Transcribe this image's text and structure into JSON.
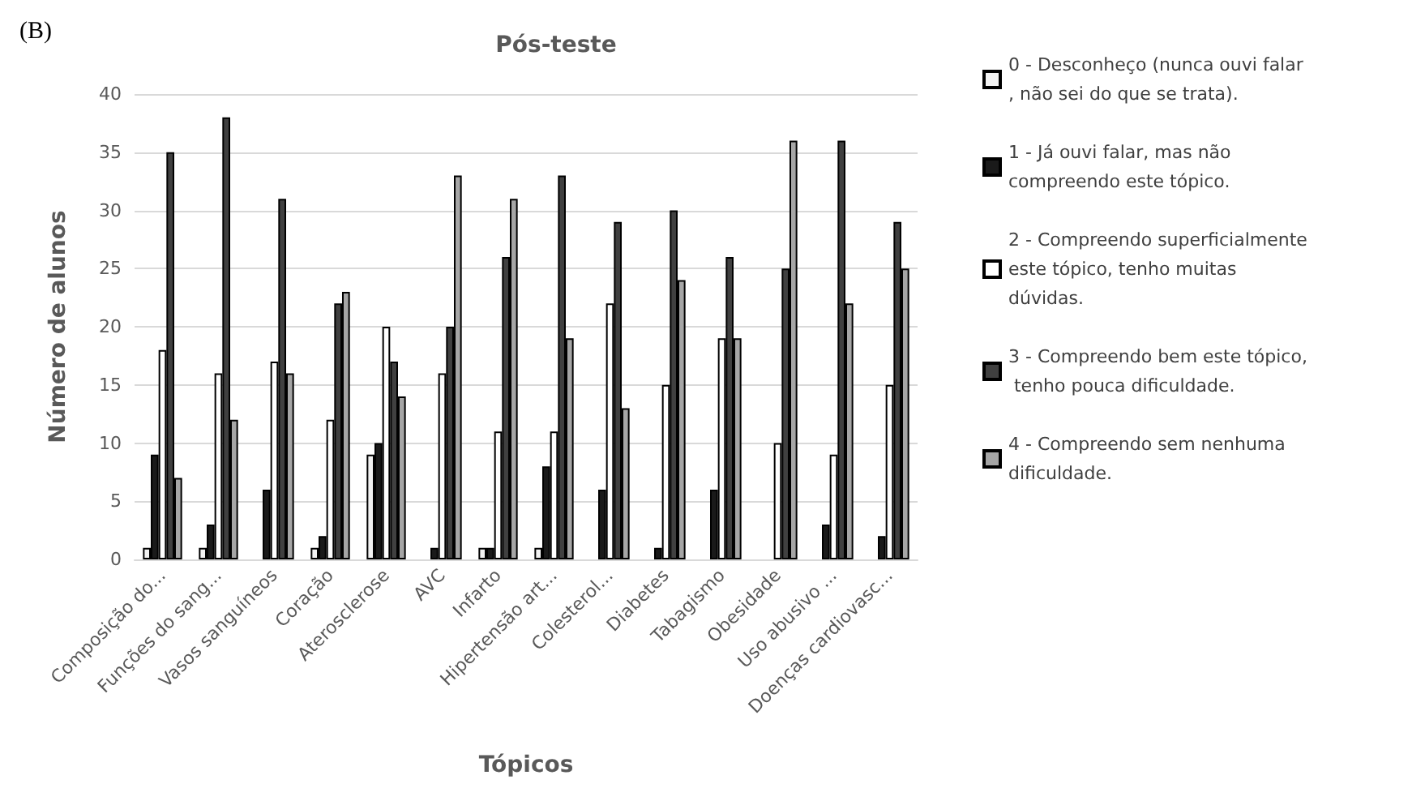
{
  "chart_data": {
    "type": "bar",
    "title": "Pós-teste",
    "xlabel": "Tópicos",
    "ylabel": "Número de alunos",
    "annotations": [
      "(B)"
    ],
    "categories": [
      "Composição do...",
      "Funções do sang...",
      "Vasos sanguíneos",
      "Coração",
      "Aterosclerose",
      "AVC",
      "Infarto",
      "Hipertensão art...",
      "Colesterol...",
      "Diabetes",
      "Tabagismo",
      "Obesidade",
      "Uso abusivo ...",
      "Doenças cardiovasc..."
    ],
    "series": [
      {
        "name": "0 - Desconheço (nunca ouvi falar, não sei do que se trata).",
        "color": "#f2f2f2",
        "values": [
          1,
          1,
          0,
          1,
          9,
          0,
          1,
          1,
          0,
          0,
          0,
          0,
          0,
          0
        ]
      },
      {
        "name": "1 - Já ouvi falar, mas não compreendo este tópico.",
        "color": "#1a1a1a",
        "values": [
          9,
          3,
          6,
          2,
          10,
          1,
          1,
          8,
          6,
          1,
          6,
          0,
          3,
          2
        ]
      },
      {
        "name": "2 - Compreendo superficialmente este tópico, tenho muitas dúvidas.",
        "color": "#ffffff",
        "values": [
          18,
          16,
          17,
          12,
          20,
          16,
          11,
          11,
          22,
          15,
          19,
          10,
          9,
          15
        ]
      },
      {
        "name": "3 - Compreendo bem este tópico, tenho pouca dificuldade.",
        "color": "#404040",
        "values": [
          35,
          38,
          31,
          22,
          17,
          20,
          26,
          33,
          29,
          30,
          26,
          25,
          36,
          29
        ]
      },
      {
        "name": "4 - Compreendo sem nenhuma dificuldade.",
        "color": "#a6a6a6",
        "values": [
          7,
          12,
          16,
          23,
          14,
          33,
          31,
          19,
          13,
          24,
          19,
          36,
          22,
          25
        ]
      }
    ],
    "ylim": [
      0,
      40
    ],
    "yticks": [
      0,
      5,
      10,
      15,
      20,
      25,
      30,
      35,
      40
    ],
    "grid": "y",
    "legend": "right"
  }
}
